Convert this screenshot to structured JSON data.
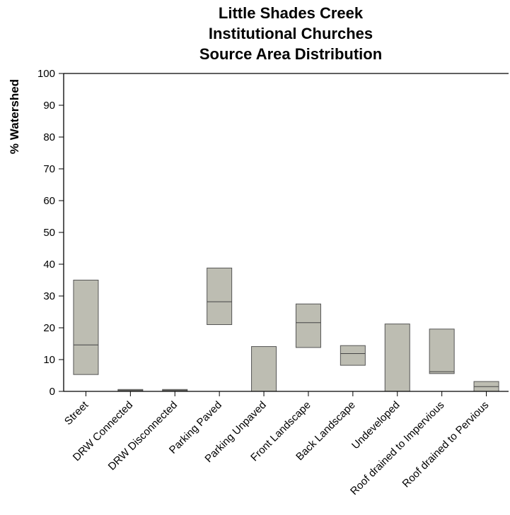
{
  "chart_data": {
    "type": "box",
    "title_lines": [
      "Little Shades Creek",
      "Institutional Churches",
      "Source Area Distribution"
    ],
    "xlabel": "",
    "ylabel": "% Watershed",
    "ylim": [
      0,
      100
    ],
    "yticks": [
      0,
      10,
      20,
      30,
      40,
      50,
      60,
      70,
      80,
      90,
      100
    ],
    "grid": false,
    "box_fill": "#bdbdb2",
    "box_stroke": "#555555",
    "median_color": "#444444",
    "categories": [
      "Street",
      "DRW Connected",
      "DRW Disconnected",
      "Parking Paved",
      "Parking Unpaved",
      "Front Landscape",
      "Back Landscape",
      "Undeveloped",
      "Roof drained to Impervious",
      "Roof drained to Pervious"
    ],
    "boxes": [
      {
        "low": 5.3,
        "median": 14.6,
        "high": 35.0
      },
      {
        "low": 0,
        "median": 0.3,
        "high": 0.6
      },
      {
        "low": 0,
        "median": 0.3,
        "high": 0.6
      },
      {
        "low": 21.0,
        "median": 28.2,
        "high": 38.8
      },
      {
        "low": 0,
        "median": 0,
        "high": 14.1
      },
      {
        "low": 13.8,
        "median": 21.6,
        "high": 27.5
      },
      {
        "low": 8.2,
        "median": 11.9,
        "high": 14.4
      },
      {
        "low": 0,
        "median": 0,
        "high": 21.2
      },
      {
        "low": 5.6,
        "median": 6.2,
        "high": 19.6
      },
      {
        "low": 0,
        "median": 1.5,
        "high": 3.1
      }
    ]
  }
}
